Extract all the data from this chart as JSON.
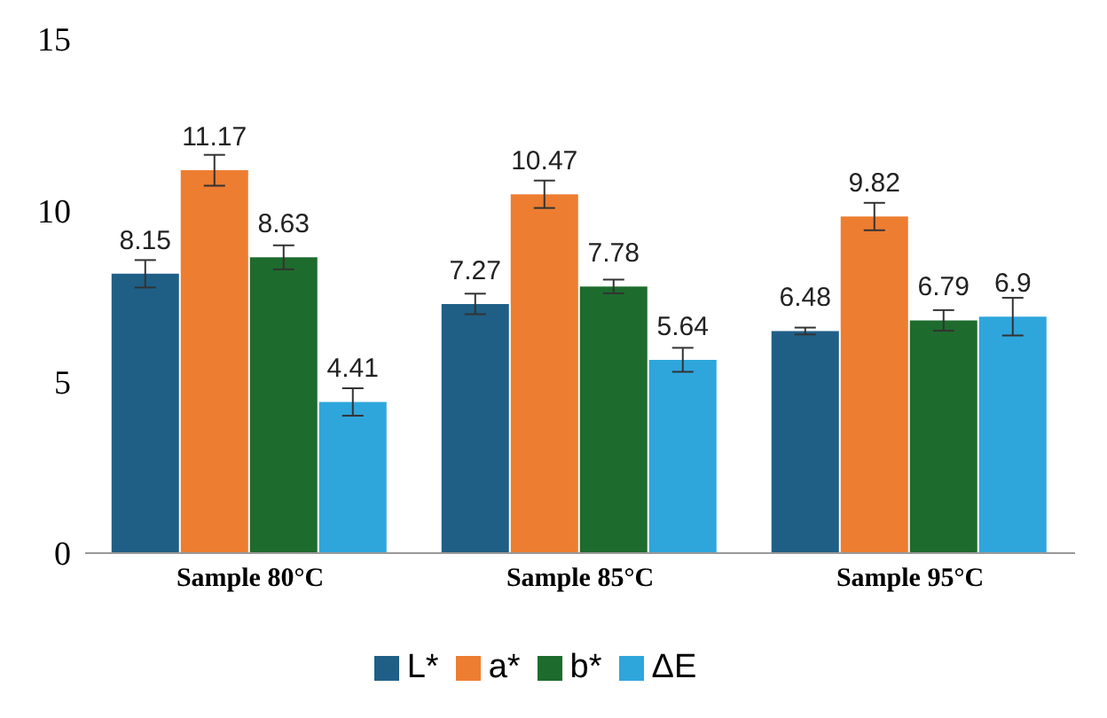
{
  "chart_data": {
    "type": "bar",
    "categories": [
      "Sample 80°C",
      "Sample 85°C",
      "Sample 95°C"
    ],
    "series": [
      {
        "name": "L*",
        "color": "#1f5f86",
        "values": [
          8.15,
          7.27,
          6.48
        ],
        "errors": [
          0.4,
          0.3,
          0.1
        ]
      },
      {
        "name": "a*",
        "color": "#ed7d31",
        "values": [
          11.17,
          10.47,
          9.82
        ],
        "errors": [
          0.45,
          0.4,
          0.4
        ]
      },
      {
        "name": "b*",
        "color": "#1e6b2e",
        "values": [
          8.63,
          7.78,
          6.79
        ],
        "errors": [
          0.35,
          0.2,
          0.3
        ]
      },
      {
        "name": "ΔE",
        "color": "#2ea6dc",
        "values": [
          4.41,
          5.64,
          6.9
        ],
        "errors": [
          0.4,
          0.35,
          0.55
        ]
      }
    ],
    "ylim": [
      0,
      15
    ],
    "yticks": [
      0,
      5,
      10,
      15
    ],
    "grid": false,
    "legend": "bottom",
    "data_labels": true
  }
}
